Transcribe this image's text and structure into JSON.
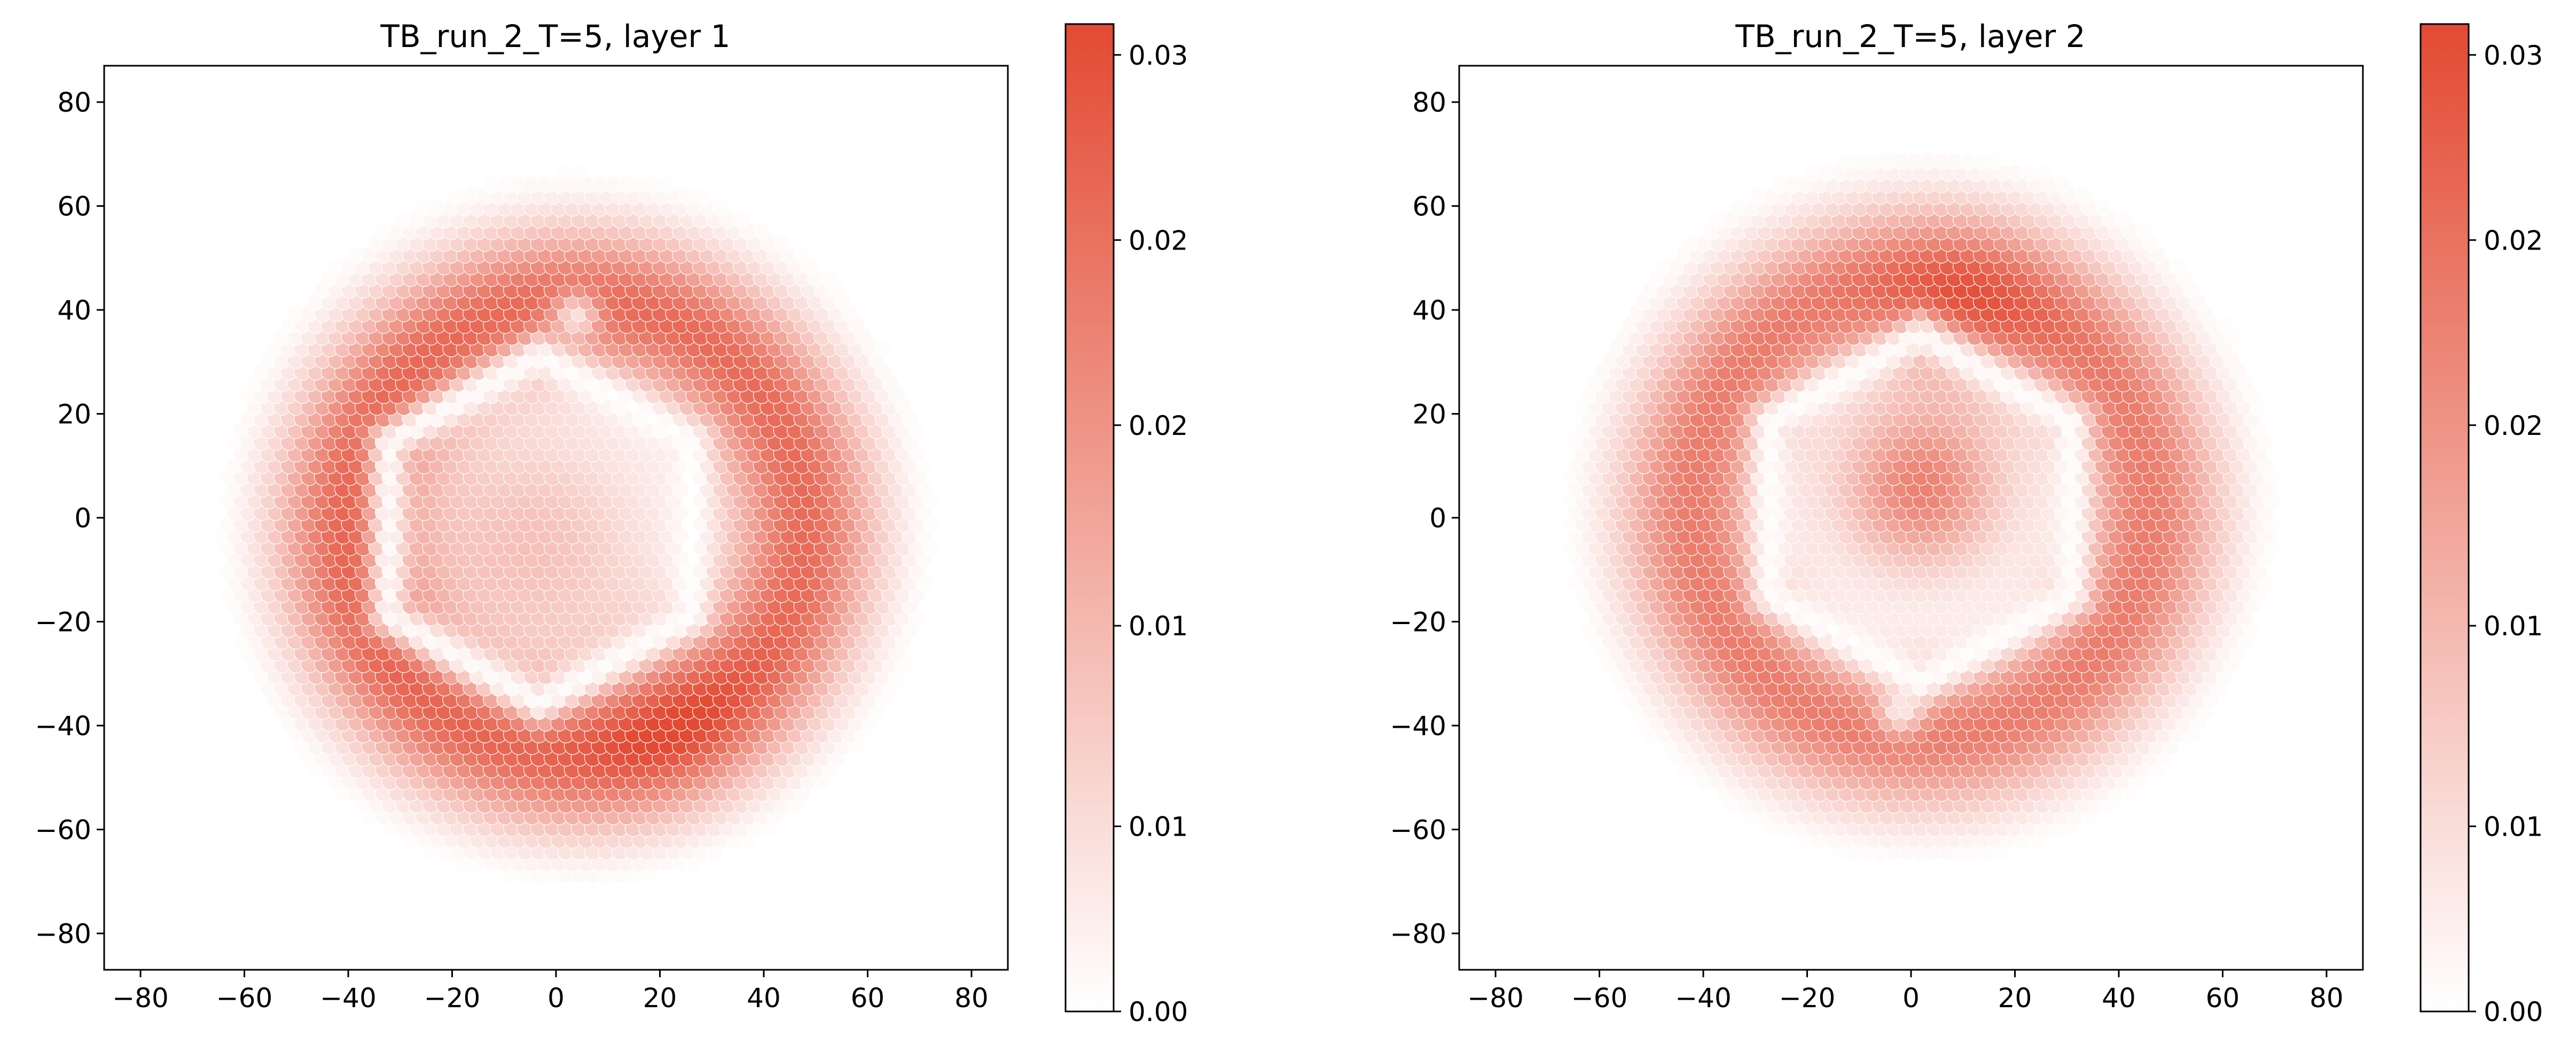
{
  "chart_data": [
    {
      "type": "heatmap",
      "title": "TB_run_2_T=5, layer 1",
      "xlabel": "",
      "ylabel": "",
      "xlim": [
        -87,
        87
      ],
      "ylim": [
        -87,
        87
      ],
      "x_ticks": [
        "−80",
        "−60",
        "−40",
        "−20",
        "0",
        "20",
        "40",
        "60",
        "80"
      ],
      "y_ticks": [
        "−80",
        "−60",
        "−40",
        "−20",
        "0",
        "20",
        "40",
        "60",
        "80"
      ],
      "grid": false,
      "lattice": "hexagonal",
      "lattice_spacing": 2.6,
      "colormap": [
        "#ffffff",
        "#e34a33"
      ],
      "colorbar": {
        "range": [
          0.0,
          0.032
        ],
        "tick_values": [
          0.0,
          0.006,
          0.0125,
          0.019,
          0.025,
          0.031
        ],
        "tick_labels": [
          "0.00",
          "0.01",
          "0.01",
          "0.02",
          "0.02",
          "0.03"
        ]
      },
      "features": {
        "ring": {
          "center": [
            4,
            -2
          ],
          "radius": 44,
          "width": 14,
          "peak": 0.026
        },
        "hotspot": {
          "center": [
            20,
            -35
          ],
          "sigma": 17,
          "amplitude": 0.008
        },
        "inner": {
          "center": [
            -5,
            -5
          ],
          "sigma": 24,
          "amplitude": 0.011
        },
        "hexagonal_gap": {
          "center": [
            -3,
            -2
          ],
          "radius": 29,
          "depth": 0.95
        },
        "top_gap": {
          "center": [
            4,
            39
          ],
          "sigma": 4.5,
          "depth": 0.8
        },
        "outer_cutoff": 62
      }
    },
    {
      "type": "heatmap",
      "title": "TB_run_2_T=5, layer 2",
      "xlabel": "",
      "ylabel": "",
      "xlim": [
        -87,
        87
      ],
      "ylim": [
        -87,
        87
      ],
      "x_ticks": [
        "−80",
        "−60",
        "−40",
        "−20",
        "0",
        "20",
        "40",
        "60",
        "80"
      ],
      "y_ticks": [
        "−80",
        "−60",
        "−40",
        "−20",
        "0",
        "20",
        "40",
        "60",
        "80"
      ],
      "grid": false,
      "lattice": "hexagonal",
      "lattice_spacing": 2.6,
      "colormap": [
        "#ffffff",
        "#e34a33"
      ],
      "colorbar": {
        "range": [
          0.0,
          0.032
        ],
        "tick_values": [
          0.0,
          0.006,
          0.0125,
          0.019,
          0.025,
          0.031
        ],
        "tick_labels": [
          "0.00",
          "0.01",
          "0.01",
          "0.02",
          "0.02",
          "0.03"
        ]
      },
      "features": {
        "ring": {
          "center": [
            2,
            2
          ],
          "radius": 44,
          "width": 14,
          "peak": 0.023
        },
        "hotspot": {
          "center": [
            10,
            38
          ],
          "sigma": 17,
          "amplitude": 0.009
        },
        "inner": {
          "center": [
            2,
            6
          ],
          "sigma": 16,
          "amplitude": 0.022
        },
        "hexagonal_gap": {
          "center": [
            2,
            2
          ],
          "radius": 29,
          "depth": 0.95
        },
        "top_gap": {
          "center": [
            -2,
            -37
          ],
          "sigma": 4.5,
          "depth": 0.8
        },
        "outer_cutoff": 62
      }
    }
  ]
}
